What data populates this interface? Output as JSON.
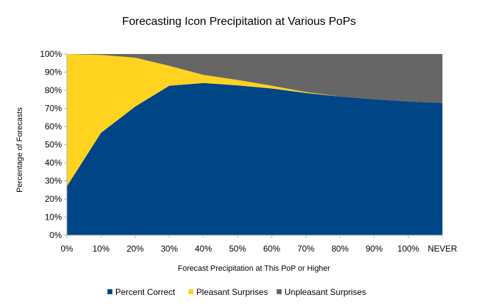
{
  "chart_data": {
    "type": "area",
    "stacked": true,
    "percent_stacked": true,
    "title": "Forecasting Icon Precipitation at Various PoPs",
    "xlabel": "Forecast Precipitation at This PoP or Higher",
    "ylabel": "Percentage of Forecasts",
    "categories": [
      "0%",
      "10%",
      "20%",
      "30%",
      "40%",
      "50%",
      "60%",
      "70%",
      "80%",
      "90%",
      "100%",
      "NEVER"
    ],
    "ylim": [
      0,
      100
    ],
    "yticks": [
      "0%",
      "10%",
      "20%",
      "30%",
      "40%",
      "50%",
      "60%",
      "70%",
      "80%",
      "90%",
      "100%"
    ],
    "grid": false,
    "legend_position": "bottom",
    "series": [
      {
        "name": "Percent Correct",
        "color": "#004586",
        "values": [
          27,
          56.5,
          71,
          82.5,
          84,
          82.7,
          81,
          78.5,
          76.5,
          75,
          73.8,
          73
        ]
      },
      {
        "name": "Pleasant Surprises",
        "color": "#ffd320",
        "values": [
          73,
          43,
          27,
          11,
          4.5,
          3,
          1.5,
          0.5,
          0,
          0,
          0,
          0
        ]
      },
      {
        "name": "Unpleasant Surprises",
        "color": "#666666",
        "values": [
          0,
          0.5,
          2,
          6.5,
          11.5,
          14.3,
          17.5,
          21,
          23.5,
          25,
          26.2,
          27
        ]
      }
    ]
  }
}
